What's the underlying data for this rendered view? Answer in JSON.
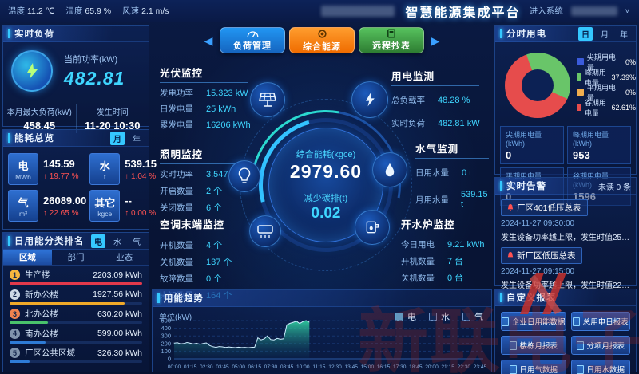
{
  "header": {
    "weather": [
      {
        "label": "温度",
        "value": "11.2 ℃"
      },
      {
        "label": "湿度",
        "value": "65.9 %"
      },
      {
        "label": "风速",
        "value": "2.1 m/s"
      }
    ],
    "title": "智慧能源集成平台",
    "enter_system": "进入系统"
  },
  "realtime_load": {
    "title": "实时负荷",
    "current_power_label": "当前功率(kW)",
    "current_power": "482.81",
    "max_load_label": "本月最大负荷(kW)",
    "max_load": "458.45",
    "occur_time_label": "发生时间",
    "occur_time": "11-20 10:30"
  },
  "energy_overview": {
    "title": "能耗总览",
    "toggle_month": "月",
    "toggle_year": "年",
    "items": [
      {
        "name": "电",
        "unit": "MWh",
        "value": "145.59",
        "delta": "19.77 %"
      },
      {
        "name": "水",
        "unit": "t",
        "value": "539.15",
        "delta": "1.04 %"
      },
      {
        "name": "气",
        "unit": "m³",
        "value": "26089.00",
        "delta": "22.65 %"
      },
      {
        "name": "其它",
        "unit": "kgce",
        "value": "--",
        "delta": "0.00 %"
      }
    ],
    "up_arrow": "↑"
  },
  "daily_ranking": {
    "title": "日用能分类排名",
    "toggles": {
      "0": "电",
      "1": "水",
      "2": "气"
    },
    "tabs": {
      "0": "区域",
      "1": "部门",
      "2": "业态"
    },
    "rows": [
      {
        "rank": "1",
        "name": "生产楼",
        "value": "2203.09 kWh",
        "pct": 100,
        "color": "#e2394b",
        "medal_color": "#f5b63f"
      },
      {
        "rank": "2",
        "name": "新办公楼",
        "value": "1927.56 kWh",
        "pct": 87,
        "color": "#f0a929",
        "medal_color": "#cdd8e6"
      },
      {
        "rank": "3",
        "name": "北办公楼",
        "value": "630.20 kWh",
        "pct": 29,
        "color": "#49c26b",
        "medal_color": "#f0824f"
      },
      {
        "rank": "4",
        "name": "南办公楼",
        "value": "599.00 kWh",
        "pct": 27,
        "color": "#2e7bd6",
        "medal_color": "#8094ad"
      },
      {
        "rank": "5",
        "name": "厂区公共区域",
        "value": "326.30 kWh",
        "pct": 15,
        "color": "#2e7bd6",
        "medal_color": "#8094ad"
      }
    ]
  },
  "nav_buttons": [
    {
      "label": "负荷管理",
      "color1": "#2196f3",
      "color2": "#1565c0"
    },
    {
      "label": "综合能源",
      "color1": "#ff9d2e",
      "color2": "#ef6c00"
    },
    {
      "label": "远程抄表",
      "color1": "#57c25e",
      "color2": "#2e7d32"
    }
  ],
  "pv": {
    "title": "光伏监控",
    "rows": [
      [
        "发电功率",
        "15.323 kW"
      ],
      [
        "日发电量",
        "25 kWh"
      ],
      [
        "累发电量",
        "16206 kWh"
      ]
    ]
  },
  "lighting": {
    "title": "照明监控",
    "rows": [
      [
        "实时功率",
        "3.547 kW"
      ],
      [
        "开启数量",
        "2 个"
      ],
      [
        "关闭数量",
        "6 个"
      ]
    ]
  },
  "ac": {
    "title": "空调末端监控",
    "rows": [
      [
        "开机数量",
        "4 个"
      ],
      [
        "关机数量",
        "137 个"
      ],
      [
        "故障数量",
        "0 个"
      ],
      [
        "未知数量",
        "164 个"
      ]
    ]
  },
  "power_watch": {
    "title": "用电监测",
    "rows": [
      [
        "总负载率",
        "48.28 %"
      ],
      [
        "实时负荷",
        "482.81 kW"
      ]
    ]
  },
  "water_gas": {
    "title": "水气监测",
    "rows": [
      [
        "日用水量",
        "0 t"
      ],
      [
        "月用水量",
        "539.15 t"
      ]
    ]
  },
  "boiler": {
    "title": "开水炉监控",
    "rows": [
      [
        "今日用电",
        "9.21 kWh"
      ],
      [
        "开机数量",
        "7 台"
      ],
      [
        "关机数量",
        "0 台"
      ]
    ]
  },
  "center_gauge": {
    "label1": "综合能耗(kgce)",
    "value1": "2979.60",
    "label2": "减少碳排(t)",
    "value2": "0.02"
  },
  "tou": {
    "title": "分时用电",
    "toggles": {
      "0": "日",
      "1": "月",
      "2": "年"
    },
    "legend": [
      {
        "label": "尖期用电量",
        "pct": "0%",
        "color": "#3b5bdb"
      },
      {
        "label": "峰期用电量",
        "pct": "37.39%",
        "color": "#69c569"
      },
      {
        "label": "平期用电量",
        "pct": "0%",
        "color": "#f0ad4e"
      },
      {
        "label": "谷期用电量",
        "pct": "62.61%",
        "color": "#e64c4c"
      }
    ],
    "stats": [
      {
        "label": "尖期用电量(kWh)",
        "value": "0"
      },
      {
        "label": "峰期用电量(kWh)",
        "value": "953"
      },
      {
        "label": "平期用电量(kWh)",
        "value": "0"
      },
      {
        "label": "谷期用电量(kWh)",
        "value": "1596"
      }
    ]
  },
  "alarms": {
    "title": "实时告警",
    "unread": "未读 0 条",
    "items": [
      {
        "name": "厂区401低压总表",
        "time": "2024-11-27 09:30:00",
        "desc": "发生设备功率越上限，发生时值253.2kW，…"
      },
      {
        "name": "新厂区低压总表",
        "time": "2024-11-27 09:15:00",
        "desc": "发生设备功率越上限，发生时值224.94kW…"
      }
    ]
  },
  "reports": {
    "title": "自定义报表",
    "buttons": {
      "0": "企业日用能数据",
      "1": "总用电日报表",
      "2": "楼栋月报表",
      "3": "分项月报表",
      "4": "日用气数据",
      "5": "日用水数据"
    }
  },
  "chart_data": {
    "type": "area",
    "title": "用能趋势",
    "unit_label": "单位(kW)",
    "legend": [
      {
        "label": "电",
        "checked": true,
        "color": "#4fc3f7"
      },
      {
        "label": "水",
        "checked": false,
        "color": "#4fc3f7"
      },
      {
        "label": "气",
        "checked": false,
        "color": "#4fc3f7"
      }
    ],
    "ylim": [
      0,
      500
    ],
    "yticks": [
      0,
      100,
      200,
      300,
      400,
      500
    ],
    "x_tick_labels": [
      "00:00",
      "01:15",
      "02:30",
      "03:45",
      "05:00",
      "06:15",
      "07:30",
      "08:45",
      "10:00",
      "11:15",
      "12:30",
      "13:45",
      "15:00",
      "16:15",
      "17:30",
      "18:45",
      "20:00",
      "21:15",
      "22:30",
      "23:45"
    ],
    "interval_minutes": 15,
    "series": [
      {
        "name": "电",
        "values": [
          205,
          210,
          196,
          200,
          214,
          204,
          194,
          203,
          190,
          200,
          208,
          175,
          158,
          150,
          160,
          156,
          148,
          155,
          150,
          146,
          152,
          147,
          150,
          145,
          150,
          152,
          275,
          248,
          262,
          300,
          252,
          248,
          268,
          256,
          262,
          445,
          465,
          478,
          492,
          462,
          488,
          500,
          478
        ]
      }
    ]
  },
  "watermark": {
    "text": "新联电子"
  }
}
